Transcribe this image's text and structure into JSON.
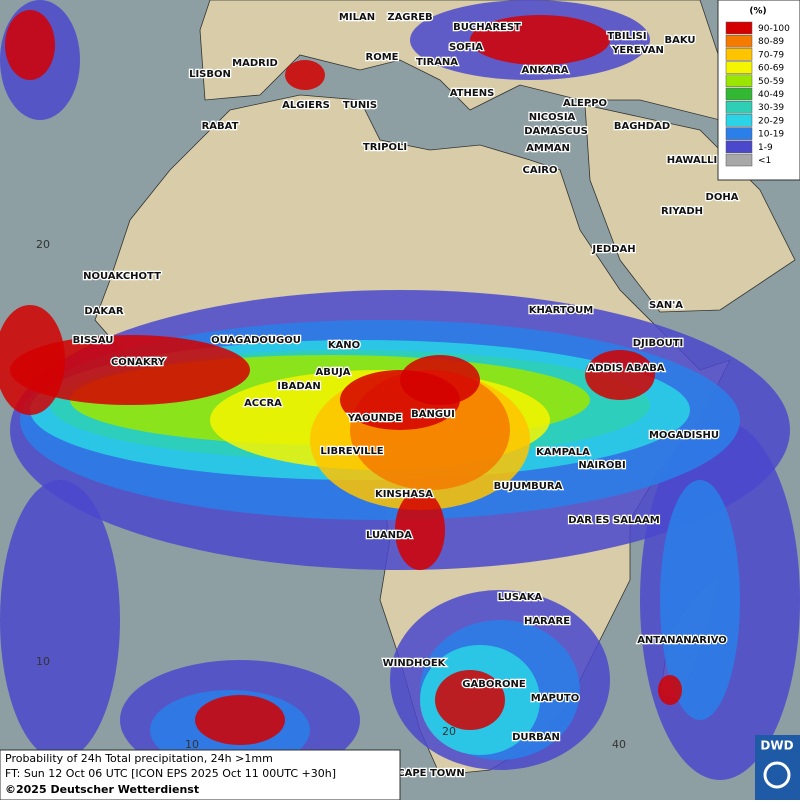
{
  "title": {
    "line1": "Probability of 24h Total precipitation, 24h >1mm",
    "line2": "FT: Sun 12 Oct 06 UTC [ICON EPS 2025 Oct 11 00UTC +30h]",
    "copyright": "©2025 Deutscher Wetterdienst"
  },
  "legend": {
    "unit": "(%)",
    "classes": [
      {
        "label": "90-100",
        "color": "#d40000"
      },
      {
        "label": "80-89",
        "color": "#f57a00"
      },
      {
        "label": "70-79",
        "color": "#ffc400"
      },
      {
        "label": "60-69",
        "color": "#f5f500"
      },
      {
        "label": "50-59",
        "color": "#9be600"
      },
      {
        "label": "40-49",
        "color": "#33b833"
      },
      {
        "label": "30-39",
        "color": "#2fcfb5"
      },
      {
        "label": "20-29",
        "color": "#2ad4e6"
      },
      {
        "label": "10-19",
        "color": "#2a7fe8"
      },
      {
        "label": "1-9",
        "color": "#4b48cc"
      },
      {
        "label": "<1",
        "color": "#a8a8a8"
      }
    ]
  },
  "cities": [
    "MILAN",
    "ZAGREB",
    "BUCHAREST",
    "SOFIA",
    "ROME",
    "TIRANA",
    "TBILISI",
    "YEREVAN",
    "BAKU",
    "LISBON",
    "MADRID",
    "ANKARA",
    "ATHENS",
    "ALGIERS",
    "TUNIS",
    "ALEPPO",
    "RABAT",
    "NICOSIA",
    "BAGHDAD",
    "DAMASCUS",
    "TRIPOLI",
    "AMMAN",
    "HAWALLI",
    "CAIRO",
    "DOHA",
    "RIYADH",
    "JEDDAH",
    "NOUAKCHOTT",
    "KHARTOUM",
    "SAN'A",
    "DAKAR",
    "BISSAU",
    "OUAGADOUGOU",
    "DJIBOUTI",
    "KANO",
    "CONAKRY",
    "ABUJA",
    "ADDIS ABABA",
    "IBADAN",
    "ACCRA",
    "BANGUI",
    "YAOUNDE",
    "MOGADISHU",
    "LIBREVILLE",
    "KAMPALA",
    "NAIROBI",
    "KINSHASA",
    "BUJUMBURA",
    "DAR ES SALAAM",
    "LUANDA",
    "LUSAKA",
    "HARARE",
    "ANTANANARIVO",
    "WINDHOEK",
    "GABORONE",
    "MAPUTO",
    "DURBAN",
    "CAPE TOWN"
  ],
  "grid_labels": [
    "20",
    "10",
    "10",
    "20",
    "40"
  ],
  "logo": "DWD"
}
